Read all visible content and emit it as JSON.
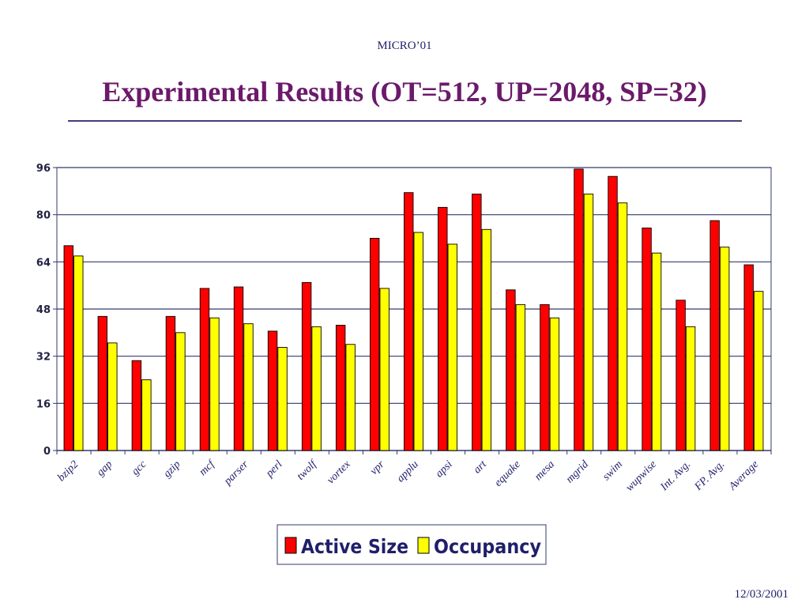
{
  "slide": {
    "conference": "MICRO’01",
    "title": "Experimental Results (OT=512, UP=2048, SP=32)",
    "date": "12/03/2001"
  },
  "chart_data": {
    "type": "bar",
    "title": "",
    "xlabel": "",
    "ylabel": "",
    "ylim": [
      0,
      96
    ],
    "yticks": [
      0,
      16,
      32,
      48,
      64,
      80,
      96
    ],
    "grid": true,
    "legend_position": "bottom-center",
    "categories": [
      "bzip2",
      "gap",
      "gcc",
      "gzip",
      "mcf",
      "parser",
      "perl",
      "twolf",
      "vortex",
      "vpr",
      "applu",
      "apsi",
      "art",
      "equake",
      "mesa",
      "mgrid",
      "swim",
      "wupwise",
      "Int. Avg.",
      "FP. Avg.",
      "Average"
    ],
    "series": [
      {
        "name": "Active Size",
        "color": "#ff0000",
        "values": [
          69.5,
          45.5,
          30.5,
          45.5,
          55,
          55.5,
          40.5,
          57,
          42.5,
          72,
          87.5,
          82.5,
          87,
          54.5,
          49.5,
          95.5,
          93,
          75.5,
          51,
          78,
          63
        ]
      },
      {
        "name": "Occupancy",
        "color": "#ffff00",
        "values": [
          66,
          36.5,
          24,
          40,
          45,
          43,
          35,
          42,
          36,
          55,
          74,
          70,
          75,
          49.5,
          45,
          87,
          84,
          67,
          42,
          69,
          54
        ]
      }
    ]
  }
}
